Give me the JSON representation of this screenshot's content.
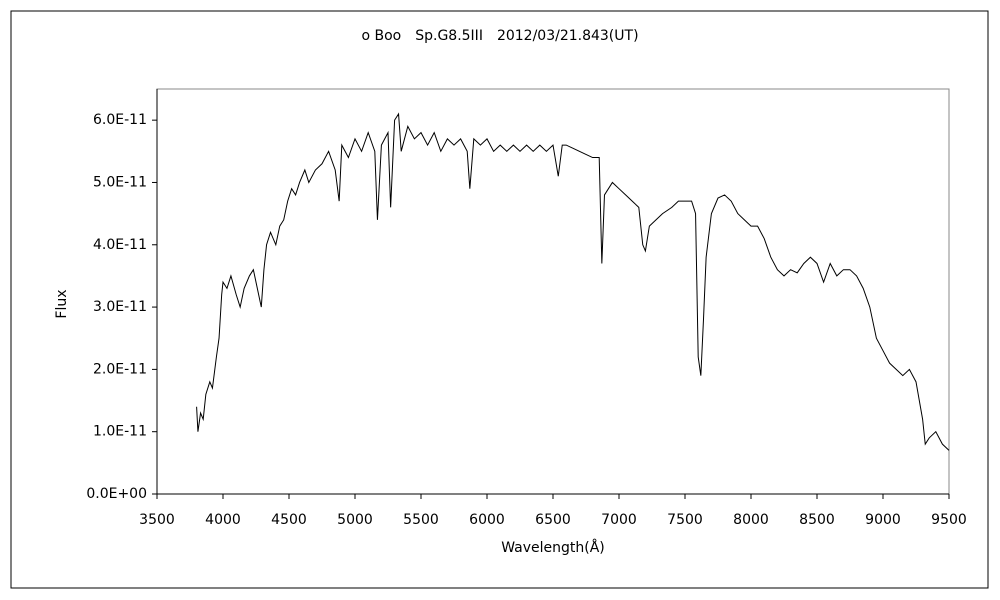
{
  "chart_data": {
    "type": "line",
    "title": "ο Boo　Sp.G8.5III　2012/03/21.843(UT)",
    "xlabel": "Wavelength(Å)",
    "ylabel": "Flux",
    "xlim": [
      3500,
      9500
    ],
    "xticks": [
      3500,
      4000,
      4500,
      5000,
      5500,
      6000,
      6500,
      7000,
      7500,
      8000,
      8500,
      9000,
      9500
    ],
    "ylim": [
      0,
      6.5e-11
    ],
    "yticks": [
      {
        "value": 0,
        "label": "0.0E+00"
      },
      {
        "value": 1e-11,
        "label": "1.0E-11"
      },
      {
        "value": 2e-11,
        "label": "2.0E-11"
      },
      {
        "value": 3e-11,
        "label": "3.0E-11"
      },
      {
        "value": 4e-11,
        "label": "4.0E-11"
      },
      {
        "value": 5e-11,
        "label": "5.0E-11"
      },
      {
        "value": 6e-11,
        "label": "6.0E-11"
      }
    ],
    "grid": false,
    "series": [
      {
        "color": "#000000",
        "x": [
          3800,
          3810,
          3830,
          3850,
          3870,
          3900,
          3920,
          3950,
          3970,
          3990,
          4000,
          4030,
          4060,
          4100,
          4130,
          4160,
          4200,
          4230,
          4260,
          4290,
          4310,
          4330,
          4360,
          4400,
          4430,
          4460,
          4490,
          4520,
          4550,
          4580,
          4620,
          4650,
          4700,
          4750,
          4800,
          4850,
          4880,
          4900,
          4950,
          5000,
          5050,
          5100,
          5150,
          5170,
          5200,
          5250,
          5270,
          5300,
          5330,
          5350,
          5400,
          5450,
          5500,
          5550,
          5600,
          5650,
          5700,
          5750,
          5800,
          5850,
          5870,
          5900,
          5950,
          6000,
          6050,
          6100,
          6150,
          6200,
          6250,
          6300,
          6350,
          6400,
          6450,
          6500,
          6540,
          6570,
          6600,
          6650,
          6700,
          6750,
          6800,
          6850,
          6870,
          6890,
          6920,
          6950,
          7000,
          7050,
          7100,
          7150,
          7180,
          7200,
          7230,
          7280,
          7330,
          7400,
          7450,
          7500,
          7550,
          7580,
          7600,
          7620,
          7640,
          7660,
          7700,
          7750,
          7800,
          7850,
          7900,
          7950,
          8000,
          8050,
          8100,
          8150,
          8200,
          8250,
          8300,
          8350,
          8400,
          8450,
          8500,
          8550,
          8600,
          8650,
          8700,
          8750,
          8800,
          8850,
          8900,
          8950,
          9000,
          9050,
          9100,
          9150,
          9200,
          9250,
          9300,
          9320,
          9350,
          9400,
          9450,
          9500
        ],
        "values": [
          1.4e-11,
          1e-11,
          1.3e-11,
          1.2e-11,
          1.6e-11,
          1.8e-11,
          1.7e-11,
          2.2e-11,
          2.5e-11,
          3.2e-11,
          3.4e-11,
          3.3e-11,
          3.5e-11,
          3.2e-11,
          3e-11,
          3.3e-11,
          3.5e-11,
          3.6e-11,
          3.3e-11,
          3e-11,
          3.6e-11,
          4e-11,
          4.2e-11,
          4e-11,
          4.3e-11,
          4.4e-11,
          4.7e-11,
          4.9e-11,
          4.8e-11,
          5e-11,
          5.2e-11,
          5e-11,
          5.2e-11,
          5.3e-11,
          5.5e-11,
          5.2e-11,
          4.7e-11,
          5.6e-11,
          5.4e-11,
          5.7e-11,
          5.5e-11,
          5.8e-11,
          5.5e-11,
          4.4e-11,
          5.6e-11,
          5.8e-11,
          4.6e-11,
          6e-11,
          6.1e-11,
          5.5e-11,
          5.9e-11,
          5.7e-11,
          5.8e-11,
          5.6e-11,
          5.8e-11,
          5.5e-11,
          5.7e-11,
          5.6e-11,
          5.7e-11,
          5.5e-11,
          4.9e-11,
          5.7e-11,
          5.6e-11,
          5.7e-11,
          5.5e-11,
          5.6e-11,
          5.5e-11,
          5.6e-11,
          5.5e-11,
          5.6e-11,
          5.5e-11,
          5.6e-11,
          5.5e-11,
          5.6e-11,
          5.1e-11,
          5.6e-11,
          5.6e-11,
          5.55e-11,
          5.5e-11,
          5.45e-11,
          5.4e-11,
          5.4e-11,
          3.7e-11,
          4.8e-11,
          4.9e-11,
          5e-11,
          4.9e-11,
          4.8e-11,
          4.7e-11,
          4.6e-11,
          4e-11,
          3.9e-11,
          4.3e-11,
          4.4e-11,
          4.5e-11,
          4.6e-11,
          4.7e-11,
          4.7e-11,
          4.7e-11,
          4.5e-11,
          2.2e-11,
          1.9e-11,
          2.8e-11,
          3.8e-11,
          4.5e-11,
          4.75e-11,
          4.8e-11,
          4.7e-11,
          4.5e-11,
          4.4e-11,
          4.3e-11,
          4.3e-11,
          4.1e-11,
          3.8e-11,
          3.6e-11,
          3.5e-11,
          3.6e-11,
          3.55e-11,
          3.7e-11,
          3.8e-11,
          3.7e-11,
          3.4e-11,
          3.7e-11,
          3.5e-11,
          3.6e-11,
          3.6e-11,
          3.5e-11,
          3.3e-11,
          3e-11,
          2.5e-11,
          2.3e-11,
          2.1e-11,
          2e-11,
          1.9e-11,
          2e-11,
          1.8e-11,
          1.2e-11,
          8e-12,
          9e-12,
          1e-11,
          8e-12,
          7e-12
        ]
      }
    ]
  }
}
